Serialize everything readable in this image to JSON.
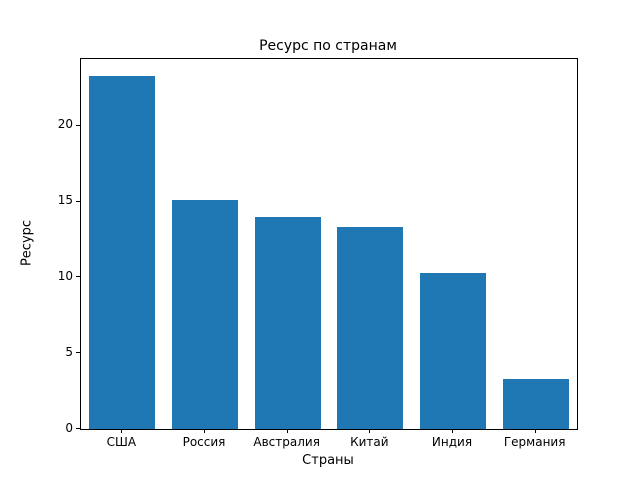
{
  "chart_data": {
    "type": "bar",
    "title": "Ресурс по странам",
    "xlabel": "Страны",
    "ylabel": "Ресурс",
    "categories": [
      "США",
      "Россия",
      "Австралия",
      "Китай",
      "Индия",
      "Германия"
    ],
    "values": [
      23.3,
      15.1,
      14.0,
      13.3,
      10.3,
      3.3
    ],
    "ylim": [
      0,
      24.4
    ],
    "yticks": [
      0,
      5,
      10,
      15,
      20
    ],
    "bar_color": "#1f77b4",
    "grid": false,
    "legend": "none"
  }
}
